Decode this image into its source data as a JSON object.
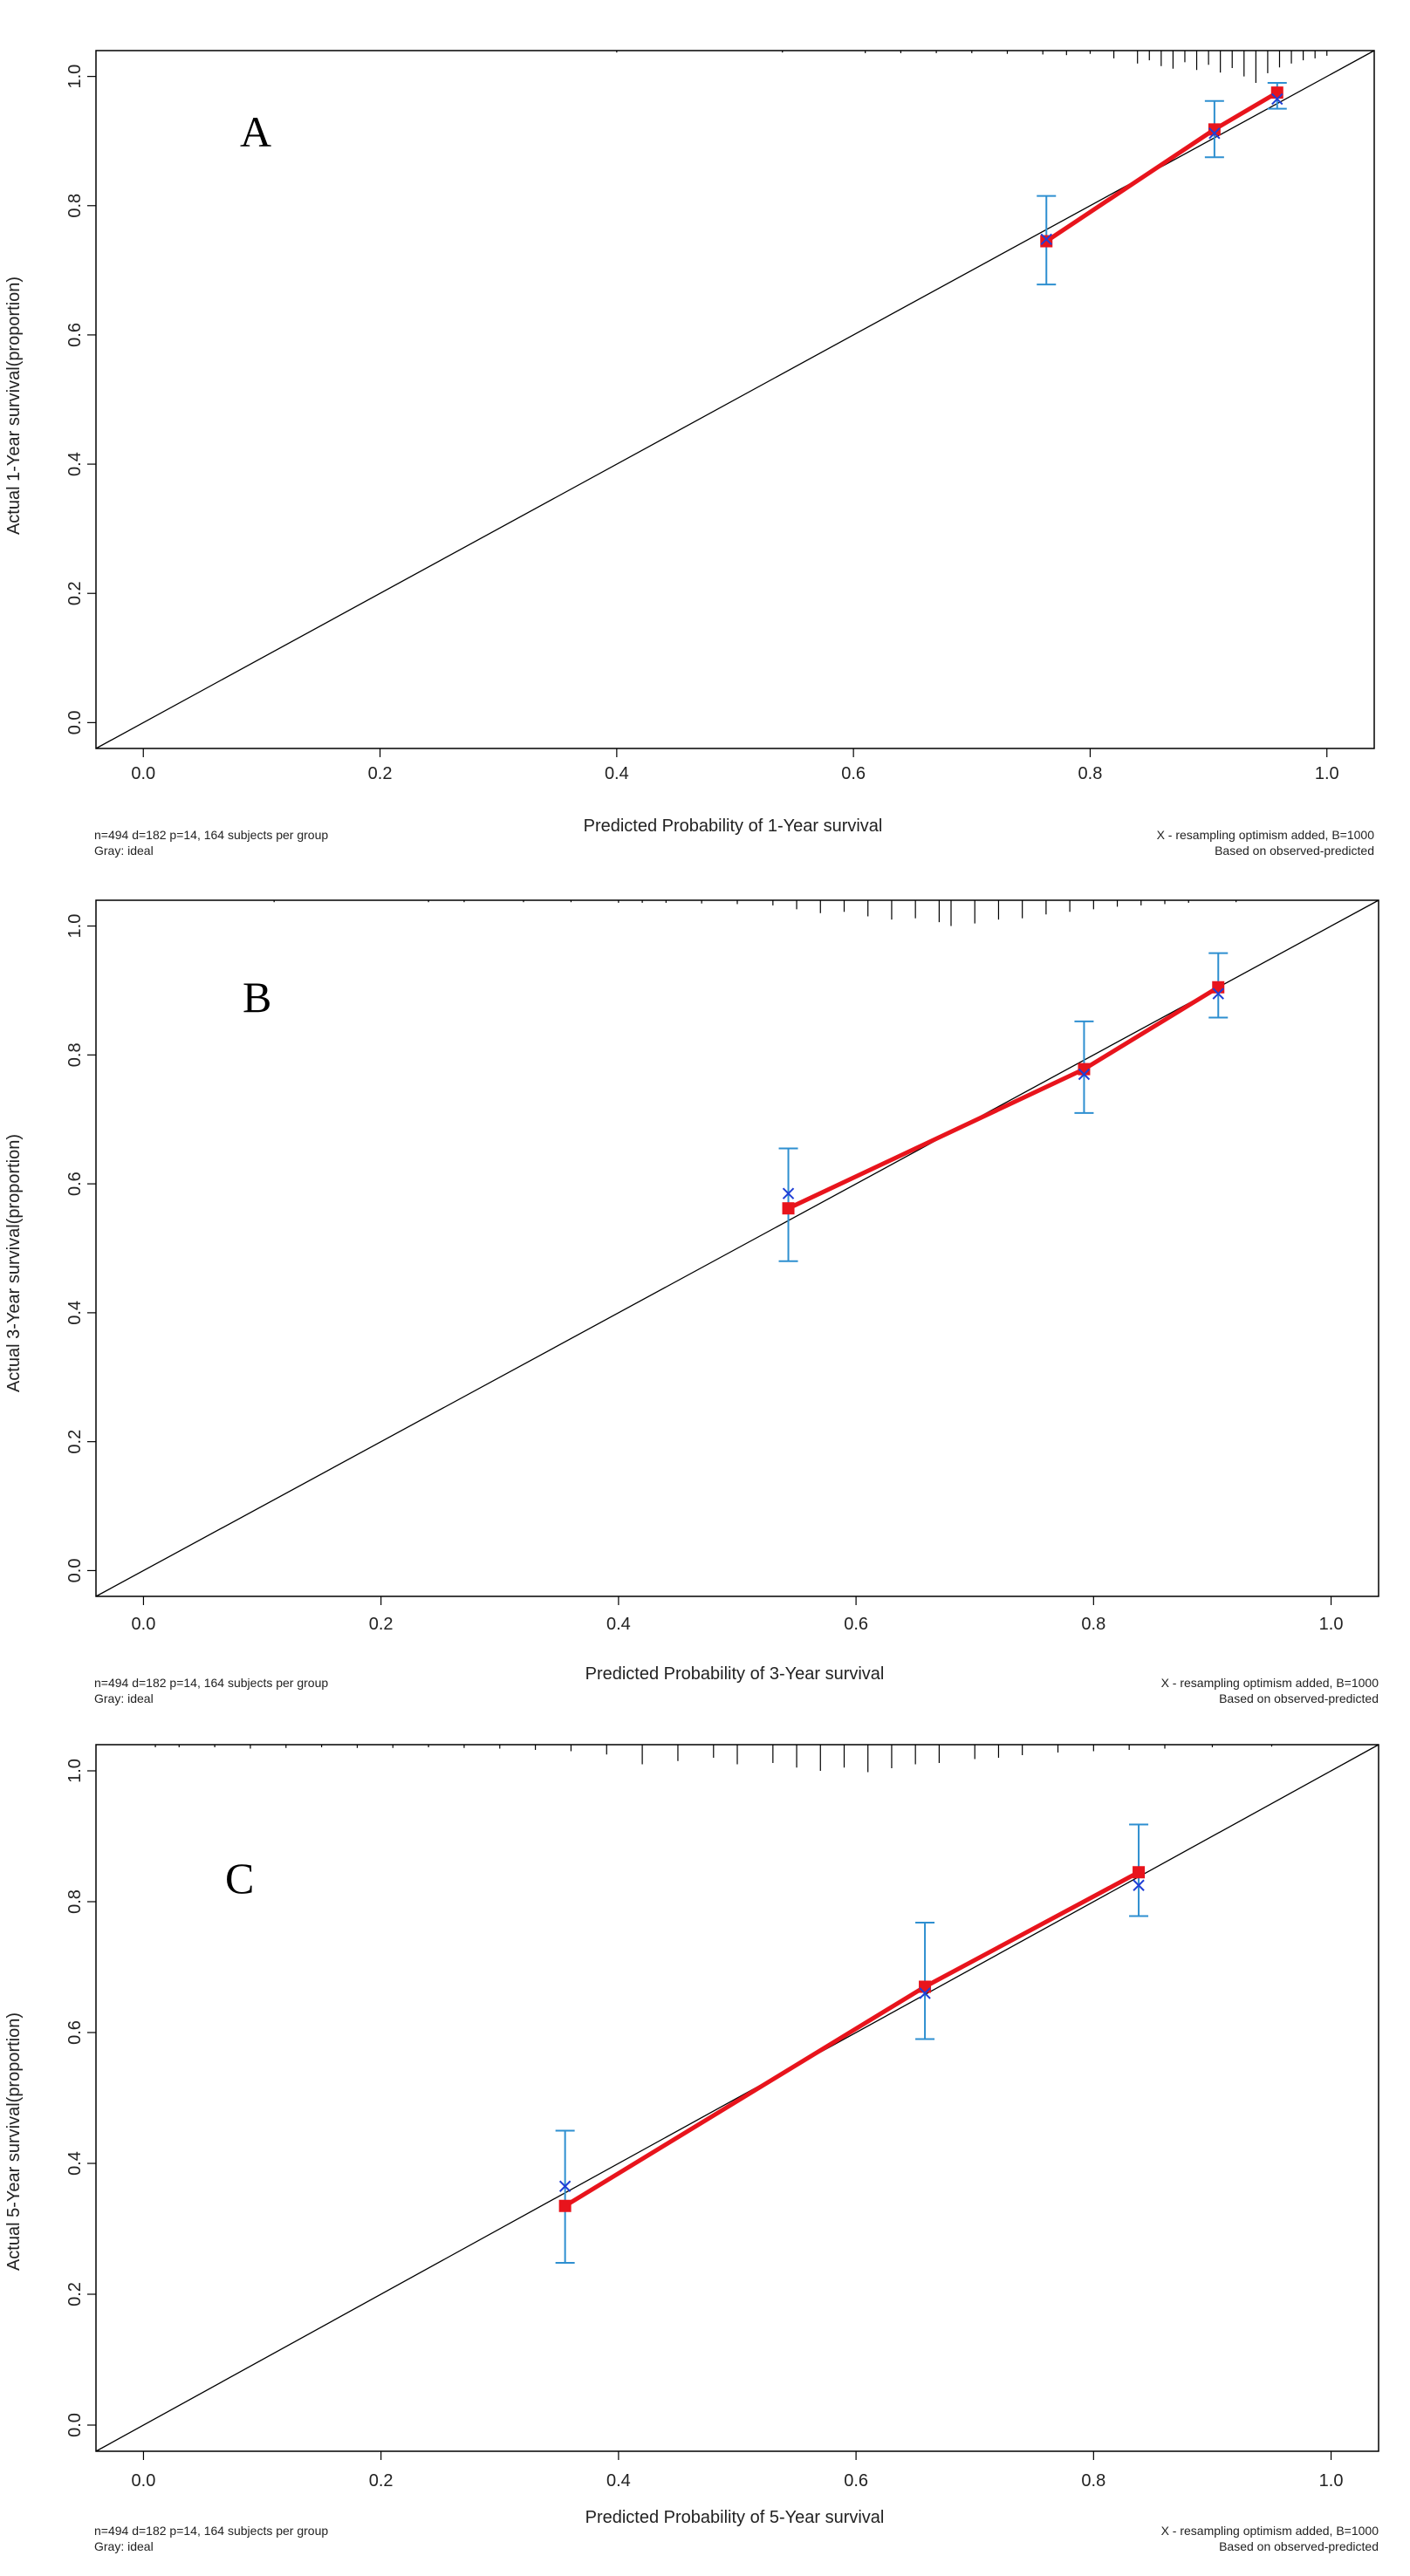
{
  "colors": {
    "apparent": "#e8141c",
    "corrected": "#1f3fd6",
    "errorbar": "#2e8fd0",
    "ideal": "#000000",
    "rug": "#000000",
    "frame": "#000000"
  },
  "chart_data": [
    {
      "type": "scatter",
      "panel_label": "A",
      "xlabel": "Predicted Probability of 1-Year survival",
      "ylabel": "Actual 1-Year survival(proportion)",
      "xlim": [
        -0.04,
        1.04
      ],
      "ylim": [
        -0.04,
        1.04
      ],
      "xticks": [
        "0.0",
        "0.2",
        "0.4",
        "0.6",
        "0.8",
        "1.0"
      ],
      "yticks": [
        "0.0",
        "0.2",
        "0.4",
        "0.6",
        "0.8",
        "1.0"
      ],
      "footnote_left": [
        "n=494 d=182 p=14, 164 subjects per group",
        "Gray: ideal"
      ],
      "footnote_right": [
        "X - resampling optimism added, B=1000",
        "Based on observed-predicted"
      ],
      "ideal_line": [
        [
          -0.04,
          -0.04
        ],
        [
          1.04,
          1.04
        ]
      ],
      "series": [
        {
          "name": "apparent",
          "x": [
            0.763,
            0.905,
            0.958
          ],
          "y": [
            0.745,
            0.918,
            0.975
          ]
        },
        {
          "name": "bias-corrected",
          "x": [
            0.763,
            0.905,
            0.958
          ],
          "y": [
            0.748,
            0.912,
            0.965
          ]
        }
      ],
      "error_bars": [
        {
          "x": 0.763,
          "low": 0.678,
          "high": 0.815
        },
        {
          "x": 0.905,
          "low": 0.875,
          "high": 0.962
        },
        {
          "x": 0.958,
          "low": 0.95,
          "high": 0.99
        }
      ],
      "rug": [
        {
          "x": 0.4,
          "h": 0.003
        },
        {
          "x": 0.54,
          "h": 0.003
        },
        {
          "x": 0.61,
          "h": 0.004
        },
        {
          "x": 0.64,
          "h": 0.004
        },
        {
          "x": 0.67,
          "h": 0.004
        },
        {
          "x": 0.7,
          "h": 0.004
        },
        {
          "x": 0.73,
          "h": 0.005
        },
        {
          "x": 0.76,
          "h": 0.006
        },
        {
          "x": 0.78,
          "h": 0.007
        },
        {
          "x": 0.8,
          "h": 0.005
        },
        {
          "x": 0.82,
          "h": 0.012
        },
        {
          "x": 0.84,
          "h": 0.02
        },
        {
          "x": 0.85,
          "h": 0.015
        },
        {
          "x": 0.86,
          "h": 0.024
        },
        {
          "x": 0.87,
          "h": 0.028
        },
        {
          "x": 0.88,
          "h": 0.018
        },
        {
          "x": 0.89,
          "h": 0.03
        },
        {
          "x": 0.9,
          "h": 0.022
        },
        {
          "x": 0.91,
          "h": 0.034
        },
        {
          "x": 0.92,
          "h": 0.027
        },
        {
          "x": 0.93,
          "h": 0.04
        },
        {
          "x": 0.94,
          "h": 0.05
        },
        {
          "x": 0.95,
          "h": 0.035
        },
        {
          "x": 0.96,
          "h": 0.026
        },
        {
          "x": 0.97,
          "h": 0.02
        },
        {
          "x": 0.98,
          "h": 0.015
        },
        {
          "x": 0.99,
          "h": 0.012
        },
        {
          "x": 1.0,
          "h": 0.008
        }
      ]
    },
    {
      "type": "scatter",
      "panel_label": "B",
      "xlabel": "Predicted Probability of 3-Year survival",
      "ylabel": "Actual 3-Year survival(proportion)",
      "xlim": [
        -0.04,
        1.04
      ],
      "ylim": [
        -0.04,
        1.04
      ],
      "xticks": [
        "0.0",
        "0.2",
        "0.4",
        "0.6",
        "0.8",
        "1.0"
      ],
      "yticks": [
        "0.0",
        "0.2",
        "0.4",
        "0.6",
        "0.8",
        "1.0"
      ],
      "footnote_left": [
        "n=494 d=182 p=14, 164 subjects per group",
        "Gray: ideal"
      ],
      "footnote_right": [
        "X - resampling optimism added, B=1000",
        "Based on observed-predicted"
      ],
      "ideal_line": [
        [
          -0.04,
          -0.04
        ],
        [
          1.04,
          1.04
        ]
      ],
      "series": [
        {
          "name": "apparent",
          "x": [
            0.543,
            0.792,
            0.905
          ],
          "y": [
            0.562,
            0.778,
            0.905
          ]
        },
        {
          "name": "bias-corrected",
          "x": [
            0.543,
            0.792,
            0.905
          ],
          "y": [
            0.585,
            0.77,
            0.895
          ]
        }
      ],
      "error_bars": [
        {
          "x": 0.543,
          "low": 0.48,
          "high": 0.655
        },
        {
          "x": 0.792,
          "low": 0.71,
          "high": 0.852
        },
        {
          "x": 0.905,
          "low": 0.858,
          "high": 0.958
        }
      ],
      "rug": [
        {
          "x": 0.11,
          "h": 0.003
        },
        {
          "x": 0.24,
          "h": 0.003
        },
        {
          "x": 0.27,
          "h": 0.003
        },
        {
          "x": 0.32,
          "h": 0.003
        },
        {
          "x": 0.36,
          "h": 0.003
        },
        {
          "x": 0.4,
          "h": 0.004
        },
        {
          "x": 0.42,
          "h": 0.004
        },
        {
          "x": 0.44,
          "h": 0.004
        },
        {
          "x": 0.47,
          "h": 0.005
        },
        {
          "x": 0.5,
          "h": 0.006
        },
        {
          "x": 0.53,
          "h": 0.008
        },
        {
          "x": 0.55,
          "h": 0.014
        },
        {
          "x": 0.57,
          "h": 0.02
        },
        {
          "x": 0.59,
          "h": 0.018
        },
        {
          "x": 0.61,
          "h": 0.025
        },
        {
          "x": 0.63,
          "h": 0.03
        },
        {
          "x": 0.65,
          "h": 0.028
        },
        {
          "x": 0.67,
          "h": 0.034
        },
        {
          "x": 0.68,
          "h": 0.04
        },
        {
          "x": 0.7,
          "h": 0.036
        },
        {
          "x": 0.72,
          "h": 0.03
        },
        {
          "x": 0.74,
          "h": 0.028
        },
        {
          "x": 0.76,
          "h": 0.022
        },
        {
          "x": 0.78,
          "h": 0.018
        },
        {
          "x": 0.8,
          "h": 0.014
        },
        {
          "x": 0.82,
          "h": 0.01
        },
        {
          "x": 0.84,
          "h": 0.008
        },
        {
          "x": 0.86,
          "h": 0.006
        },
        {
          "x": 0.88,
          "h": 0.004
        },
        {
          "x": 0.92,
          "h": 0.003
        }
      ]
    },
    {
      "type": "scatter",
      "panel_label": "C",
      "xlabel": "Predicted Probability of 5-Year survival",
      "ylabel": "Actual 5-Year survival(proportion)",
      "xlim": [
        -0.04,
        1.04
      ],
      "ylim": [
        -0.04,
        1.04
      ],
      "xticks": [
        "0.0",
        "0.2",
        "0.4",
        "0.6",
        "0.8",
        "1.0"
      ],
      "yticks": [
        "0.0",
        "0.2",
        "0.4",
        "0.6",
        "0.8",
        "1.0"
      ],
      "footnote_left": [
        "n=494 d=182 p=14, 164 subjects per group",
        "Gray: ideal"
      ],
      "footnote_right": [
        "X - resampling optimism added, B=1000",
        "Based on observed-predicted"
      ],
      "ideal_line": [
        [
          -0.04,
          -0.04
        ],
        [
          1.04,
          1.04
        ]
      ],
      "series": [
        {
          "name": "apparent",
          "x": [
            0.355,
            0.658,
            0.838
          ],
          "y": [
            0.335,
            0.67,
            0.845
          ]
        },
        {
          "name": "bias-corrected",
          "x": [
            0.355,
            0.658,
            0.838
          ],
          "y": [
            0.365,
            0.66,
            0.825
          ]
        }
      ],
      "error_bars": [
        {
          "x": 0.355,
          "low": 0.248,
          "high": 0.45
        },
        {
          "x": 0.658,
          "low": 0.59,
          "high": 0.768
        },
        {
          "x": 0.838,
          "low": 0.778,
          "high": 0.918
        }
      ],
      "rug": [
        {
          "x": 0.01,
          "h": 0.004
        },
        {
          "x": 0.03,
          "h": 0.004
        },
        {
          "x": 0.06,
          "h": 0.004
        },
        {
          "x": 0.09,
          "h": 0.006
        },
        {
          "x": 0.12,
          "h": 0.005
        },
        {
          "x": 0.15,
          "h": 0.004
        },
        {
          "x": 0.18,
          "h": 0.005
        },
        {
          "x": 0.21,
          "h": 0.005
        },
        {
          "x": 0.24,
          "h": 0.004
        },
        {
          "x": 0.27,
          "h": 0.005
        },
        {
          "x": 0.3,
          "h": 0.006
        },
        {
          "x": 0.33,
          "h": 0.008
        },
        {
          "x": 0.36,
          "h": 0.01
        },
        {
          "x": 0.39,
          "h": 0.015
        },
        {
          "x": 0.42,
          "h": 0.03
        },
        {
          "x": 0.45,
          "h": 0.025
        },
        {
          "x": 0.48,
          "h": 0.02
        },
        {
          "x": 0.5,
          "h": 0.03
        },
        {
          "x": 0.53,
          "h": 0.028
        },
        {
          "x": 0.55,
          "h": 0.035
        },
        {
          "x": 0.57,
          "h": 0.04
        },
        {
          "x": 0.59,
          "h": 0.035
        },
        {
          "x": 0.61,
          "h": 0.042
        },
        {
          "x": 0.63,
          "h": 0.036
        },
        {
          "x": 0.65,
          "h": 0.03
        },
        {
          "x": 0.67,
          "h": 0.028
        },
        {
          "x": 0.7,
          "h": 0.022
        },
        {
          "x": 0.72,
          "h": 0.02
        },
        {
          "x": 0.74,
          "h": 0.016
        },
        {
          "x": 0.77,
          "h": 0.012
        },
        {
          "x": 0.8,
          "h": 0.01
        },
        {
          "x": 0.83,
          "h": 0.008
        },
        {
          "x": 0.86,
          "h": 0.006
        },
        {
          "x": 0.9,
          "h": 0.004
        },
        {
          "x": 0.95,
          "h": 0.003
        }
      ]
    }
  ]
}
